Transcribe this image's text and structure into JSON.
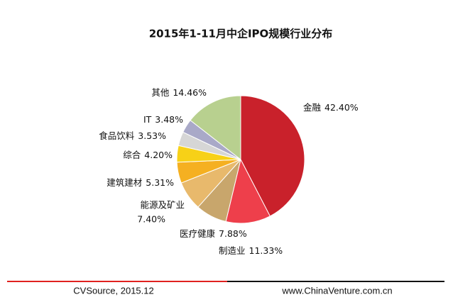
{
  "chart_data": {
    "type": "pie",
    "title": "2015年1-11月中企IPO规模行业分布",
    "categories": [
      "金融",
      "制造业",
      "医疗健康",
      "能源及矿业",
      "建筑建材",
      "综合",
      "食品饮料",
      "IT",
      "其他"
    ],
    "values": [
      42.4,
      11.33,
      7.88,
      7.4,
      5.31,
      4.2,
      3.53,
      3.48,
      14.46
    ],
    "value_labels": [
      "42.40%",
      "11.33%",
      "7.88%",
      "7.40%",
      "5.31%",
      "4.20%",
      "3.53%",
      "3.48%",
      "14.46%"
    ],
    "colors": [
      "#c9212b",
      "#ee3f4b",
      "#c8a66c",
      "#e8b96c",
      "#f5b021",
      "#f7d117",
      "#d6d6d6",
      "#a9a9c8",
      "#b8d08f"
    ]
  },
  "footer": {
    "source": "CVSource, 2015.12",
    "website": "www.ChinaVenture.com.cn"
  }
}
